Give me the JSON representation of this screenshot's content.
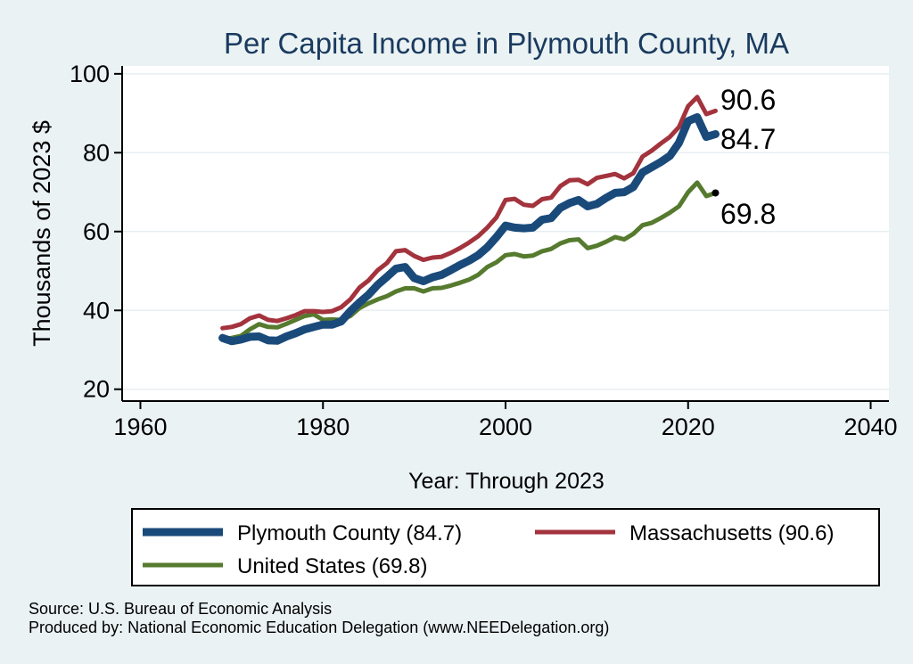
{
  "chart_data": {
    "type": "line",
    "title": "Per Capita Income in Plymouth County, MA",
    "xlabel": "Year: Through 2023",
    "ylabel": "Thousands of 2023 $",
    "xlim": [
      1958,
      2042
    ],
    "ylim": [
      17,
      102
    ],
    "xticks": [
      1960,
      1980,
      2000,
      2020,
      2040
    ],
    "yticks": [
      20,
      40,
      60,
      80,
      100
    ],
    "grid": "horizontal",
    "colors": {
      "background": "#eaf2f3",
      "plot_background": "#ffffff",
      "grid": "#e8eef2",
      "axis": "#000000",
      "title": "#1a3a5f"
    },
    "x": [
      1969,
      1970,
      1971,
      1972,
      1973,
      1974,
      1975,
      1976,
      1977,
      1978,
      1979,
      1980,
      1981,
      1982,
      1983,
      1984,
      1985,
      1986,
      1987,
      1988,
      1989,
      1990,
      1991,
      1992,
      1993,
      1994,
      1995,
      1996,
      1997,
      1998,
      1999,
      2000,
      2001,
      2002,
      2003,
      2004,
      2005,
      2006,
      2007,
      2008,
      2009,
      2010,
      2011,
      2012,
      2013,
      2014,
      2015,
      2016,
      2017,
      2018,
      2019,
      2020,
      2021,
      2022,
      2023
    ],
    "series": [
      {
        "name": "Plymouth County (84.7)",
        "color": "#1a4a7a",
        "values": [
          33.0,
          32.2,
          32.6,
          33.3,
          33.4,
          32.4,
          32.3,
          33.4,
          34.2,
          35.2,
          35.8,
          36.4,
          36.4,
          37.2,
          39.8,
          42.0,
          44.0,
          46.5,
          48.5,
          50.6,
          51.0,
          48.2,
          47.4,
          48.4,
          49.0,
          50.2,
          51.5,
          52.6,
          54.0,
          56.0,
          58.6,
          61.5,
          61.0,
          60.8,
          61.0,
          63.0,
          63.4,
          66.0,
          67.2,
          68.0,
          66.4,
          67.0,
          68.5,
          69.8,
          70.0,
          71.3,
          75.0,
          76.3,
          77.6,
          79.2,
          82.5,
          88.0,
          89.0,
          84.0,
          84.7
        ]
      },
      {
        "name": "Massachusetts (90.6)",
        "color": "#a3333d",
        "values": [
          35.5,
          35.8,
          36.5,
          38.0,
          38.7,
          37.6,
          37.3,
          38.0,
          38.8,
          39.8,
          39.8,
          39.6,
          39.8,
          40.8,
          42.8,
          45.8,
          47.6,
          50.2,
          52.0,
          55.0,
          55.3,
          53.8,
          52.8,
          53.4,
          53.6,
          54.6,
          55.8,
          57.2,
          58.8,
          61.0,
          63.6,
          68.0,
          68.3,
          66.8,
          66.5,
          68.2,
          68.6,
          71.5,
          73.0,
          73.1,
          72.0,
          73.6,
          74.1,
          74.6,
          73.5,
          74.8,
          79.0,
          80.5,
          82.3,
          84.0,
          86.5,
          91.8,
          94.1,
          89.8,
          90.6
        ]
      },
      {
        "name": "United States (69.8)",
        "color": "#567a2e",
        "values": [
          32.8,
          33.0,
          33.5,
          35.2,
          36.5,
          35.8,
          35.7,
          36.6,
          37.6,
          38.6,
          39.0,
          37.6,
          37.7,
          37.6,
          38.6,
          40.6,
          41.8,
          42.8,
          43.6,
          44.8,
          45.6,
          45.6,
          44.8,
          45.6,
          45.7,
          46.3,
          47.0,
          47.8,
          49.0,
          51.0,
          52.2,
          54.0,
          54.3,
          53.7,
          53.9,
          55.0,
          55.6,
          57.0,
          57.8,
          58.0,
          55.8,
          56.4,
          57.4,
          58.6,
          58.0,
          59.4,
          61.6,
          62.2,
          63.4,
          64.8,
          66.4,
          70.0,
          72.4,
          69.0,
          69.8
        ]
      }
    ],
    "end_labels": [
      "90.6",
      "84.7",
      "69.8"
    ],
    "legend": {
      "placement": "bottom",
      "items": [
        "Plymouth County (84.7)",
        "Massachusetts (90.6)",
        "United States (69.8)"
      ]
    },
    "notes": [
      "Source: U.S. Bureau of Economic Analysis",
      "Produced by: National Economic Education Delegation (www.NEEDelegation.org)"
    ]
  }
}
